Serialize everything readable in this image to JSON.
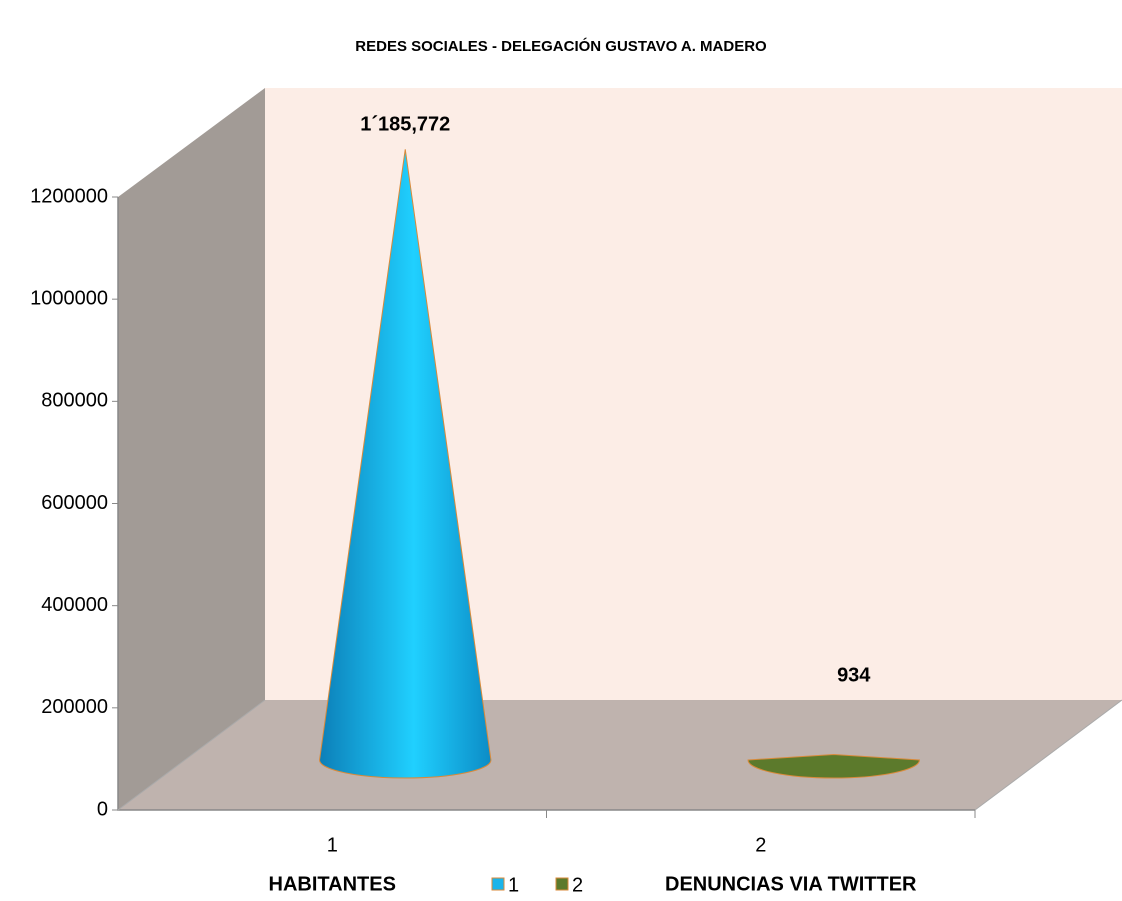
{
  "chart_data": {
    "type": "cone3d",
    "title": "REDES SOCIALES - DELEGACIÓN GUSTAVO A. MADERO",
    "categories": [
      "1",
      "2"
    ],
    "category_labels": [
      "HABITANTES",
      "DENUNCIAS VIA TWITTER"
    ],
    "values": [
      1185772,
      934
    ],
    "value_labels": [
      "1´185,772",
      "934"
    ],
    "colors": [
      "#1ab4ea",
      "#5c7a2c"
    ],
    "ylim": [
      0,
      1200000
    ],
    "yticks": [
      0,
      200000,
      400000,
      600000,
      800000,
      1000000,
      1200000
    ]
  }
}
